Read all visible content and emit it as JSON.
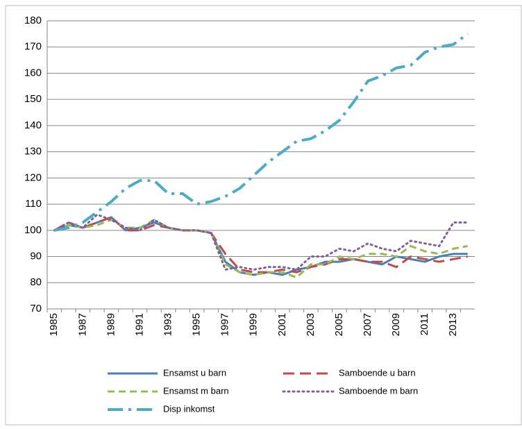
{
  "chart_data": {
    "type": "line",
    "categories": [
      "1985",
      null,
      "1987",
      null,
      "1989",
      null,
      "1991",
      null,
      "1993",
      null,
      "1995",
      null,
      "1997",
      null,
      "1999",
      null,
      "2001",
      null,
      "2003",
      null,
      "2005",
      null,
      "2007",
      null,
      "2009",
      null,
      "2011",
      null,
      "2013",
      null
    ],
    "series": [
      {
        "name": "Ensamst u barn",
        "color": "#4a7ebb",
        "dash": "solid",
        "values": [
          100,
          102,
          101,
          103,
          105,
          100,
          101,
          103,
          101,
          100,
          100,
          99,
          88,
          84,
          83,
          84,
          83,
          85,
          86,
          88,
          88,
          89,
          88,
          87,
          90,
          89,
          88,
          90,
          91,
          91
        ]
      },
      {
        "name": "Samboende u barn",
        "color": "#be4b48",
        "dash": "long",
        "values": [
          100,
          103,
          101,
          103,
          105,
          100,
          100,
          102,
          101,
          100,
          100,
          99,
          91,
          85,
          84,
          84,
          85,
          84,
          86,
          87,
          89,
          89,
          88,
          88,
          86,
          90,
          89,
          88,
          89,
          90
        ]
      },
      {
        "name": "Ensamst m barn",
        "color": "#98b954",
        "dash": "medium",
        "values": [
          100,
          102,
          101,
          102,
          104,
          101,
          101,
          104,
          101,
          100,
          100,
          99,
          87,
          84,
          83,
          84,
          84,
          82,
          87,
          87,
          90,
          89,
          91,
          91,
          90,
          94,
          92,
          91,
          93,
          94
        ]
      },
      {
        "name": "Samboende m barn",
        "color": "#7d60a0",
        "dash": "dot",
        "values": [
          100,
          103,
          101,
          106,
          104,
          101,
          100,
          104,
          101,
          100,
          100,
          99,
          85,
          86,
          85,
          86,
          86,
          85,
          90,
          90,
          93,
          92,
          95,
          93,
          92,
          96,
          95,
          94,
          103,
          103
        ]
      },
      {
        "name": "Disp inkomst",
        "color": "#4bacc6",
        "dash": "dashdot",
        "values": [
          100,
          101,
          103,
          107,
          111,
          116,
          119,
          119,
          114,
          114,
          110,
          111,
          113,
          116,
          121,
          126,
          130,
          134,
          135,
          138,
          142,
          149,
          157,
          159,
          162,
          163,
          168,
          170,
          171,
          175
        ]
      }
    ],
    "ylim": [
      70,
      180
    ],
    "yticks": [
      70,
      80,
      90,
      100,
      110,
      120,
      130,
      140,
      150,
      160,
      170,
      180
    ],
    "grid": true
  }
}
